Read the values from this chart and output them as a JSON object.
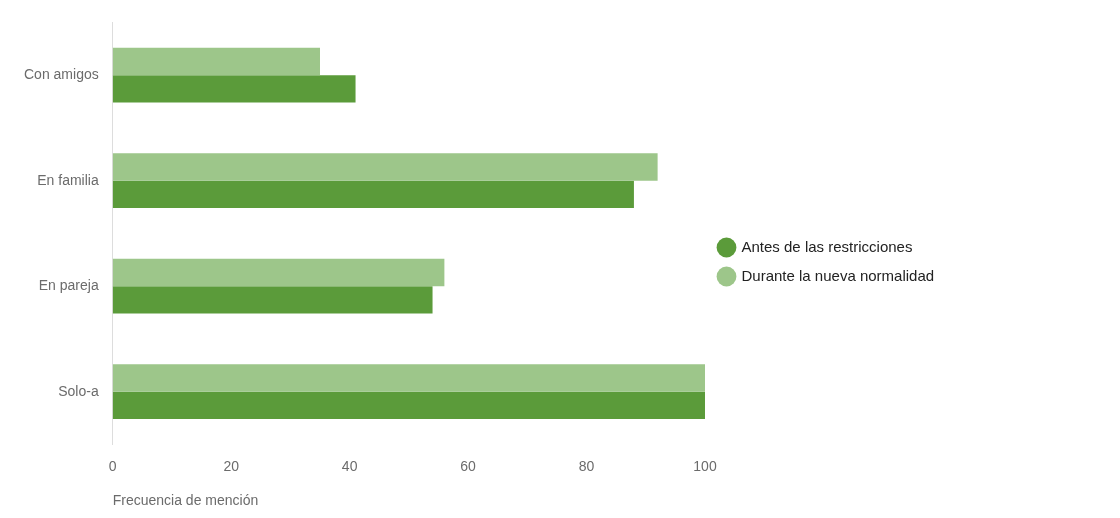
{
  "chart_data": {
    "type": "bar",
    "orientation": "horizontal",
    "xlabel": "Frecuencia de mención",
    "categories": [
      "Con amigos",
      "En familia",
      "En pareja",
      "Solo-a"
    ],
    "series": [
      {
        "name": "Antes de las restricciones",
        "color": "#5b9b3a",
        "values": [
          41,
          88,
          54,
          100
        ]
      },
      {
        "name": "Durante la nueva normalidad",
        "color": "#9dc68a",
        "values": [
          35,
          92,
          56,
          100
        ]
      }
    ],
    "xlim": [
      0,
      100
    ],
    "xticks": [
      0,
      20,
      40,
      60,
      80,
      100
    ],
    "grid": false,
    "legend": "right"
  }
}
